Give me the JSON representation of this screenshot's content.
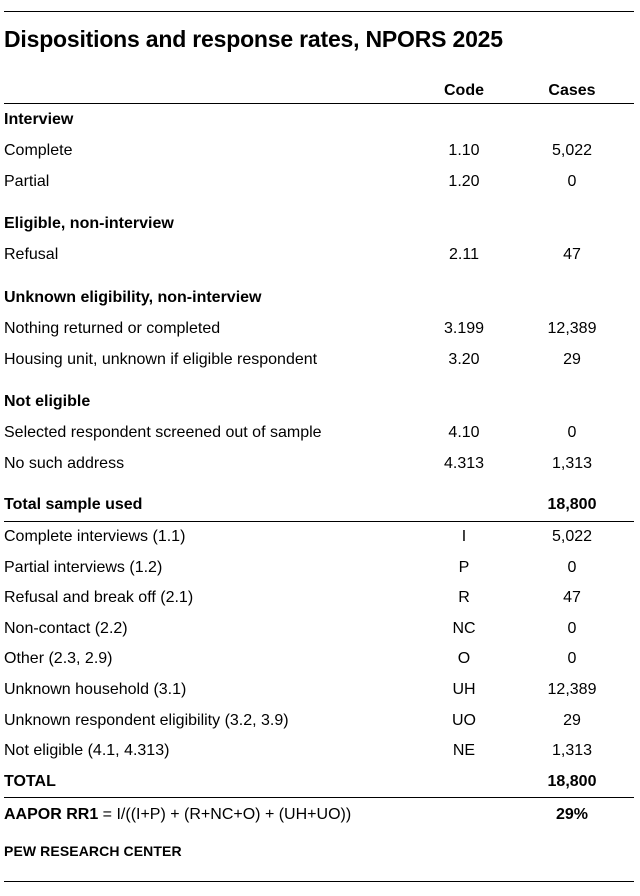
{
  "title": "Dispositions and response rates, NPORS 2025",
  "columns": {
    "code": "Code",
    "cases": "Cases"
  },
  "sections": [
    {
      "heading": "Interview",
      "rows": [
        {
          "label": "Complete",
          "code": "1.10",
          "cases": "5,022"
        },
        {
          "label": "Partial",
          "code": "1.20",
          "cases": "0"
        }
      ]
    },
    {
      "heading": "Eligible, non-interview",
      "rows": [
        {
          "label": "Refusal",
          "code": "2.11",
          "cases": "47"
        }
      ]
    },
    {
      "heading": "Unknown eligibility, non-interview",
      "rows": [
        {
          "label": "Nothing returned or completed",
          "code": "3.199",
          "cases": "12,389"
        },
        {
          "label": "Housing unit, unknown if eligible respondent",
          "code": "3.20",
          "cases": "29"
        }
      ]
    },
    {
      "heading": "Not eligible",
      "rows": [
        {
          "label": "Selected respondent screened out of sample",
          "code": "4.10",
          "cases": "0"
        },
        {
          "label": "No such address",
          "code": "4.313",
          "cases": "1,313"
        }
      ]
    }
  ],
  "total_sample": {
    "label": "Total sample used",
    "cases": "18,800"
  },
  "summary_rows": [
    {
      "label": "Complete interviews (1.1)",
      "code": "I",
      "cases": "5,022"
    },
    {
      "label": "Partial interviews (1.2)",
      "code": "P",
      "cases": "0"
    },
    {
      "label": "Refusal and break off (2.1)",
      "code": "R",
      "cases": "47"
    },
    {
      "label": "Non-contact (2.2)",
      "code": "NC",
      "cases": "0"
    },
    {
      "label": "Other (2.3, 2.9)",
      "code": "O",
      "cases": "0"
    },
    {
      "label": "Unknown household (3.1)",
      "code": "UH",
      "cases": "12,389"
    },
    {
      "label": "Unknown respondent eligibility (3.2, 3.9)",
      "code": "UO",
      "cases": "29"
    },
    {
      "label": "Not eligible (4.1, 4.313)",
      "code": "NE",
      "cases": "1,313"
    }
  ],
  "total": {
    "label": "TOTAL",
    "cases": "18,800"
  },
  "rate": {
    "name": "AAPOR RR1",
    "formula": " = I/((I+P) + (R+NC+O) + (UH+UO))",
    "value": "29%"
  },
  "source": "PEW RESEARCH CENTER"
}
